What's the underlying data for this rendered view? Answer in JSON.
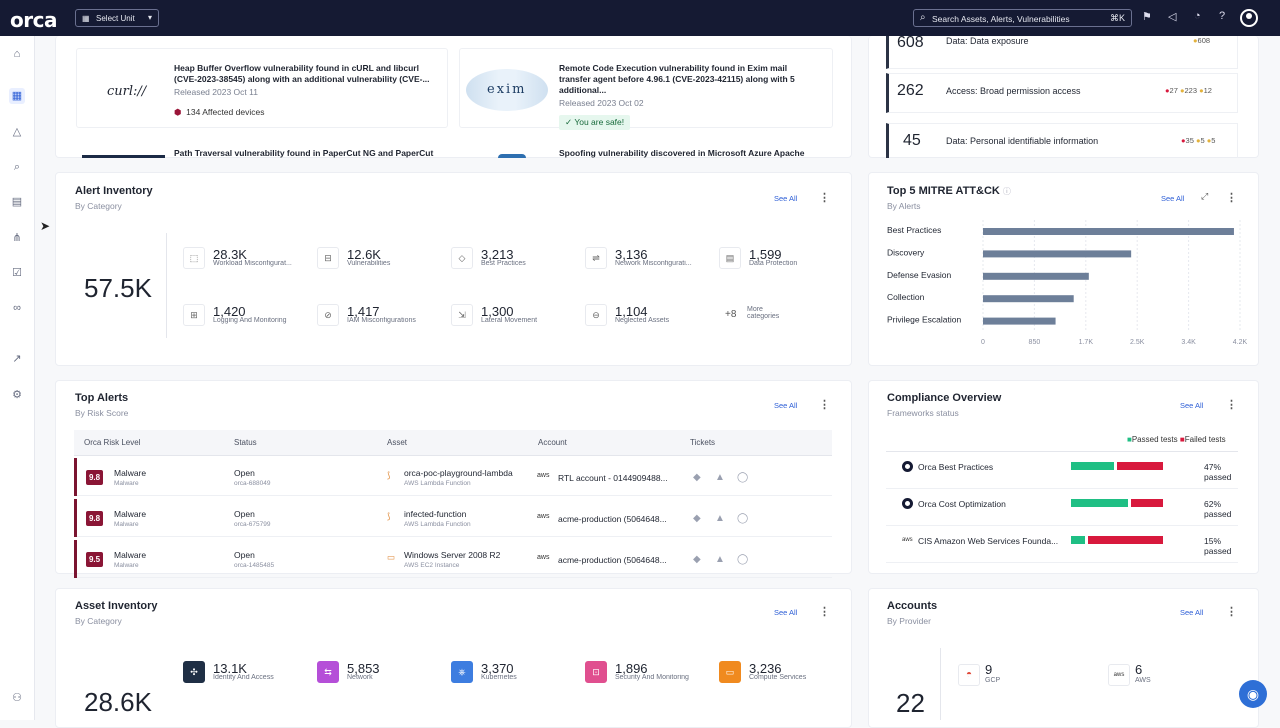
{
  "topbar": {
    "logo": "orca",
    "unit_select": "Select Unit",
    "search_placeholder": "Search Assets, Alerts, Vulnerabilities",
    "search_shortcut": "⌘K"
  },
  "news": [
    {
      "logo": "curl://",
      "title": "Heap Buffer Overflow vulnerability found in cURL and libcurl (CVE-2023-38545) along with an additional vulnerability (CVE-...",
      "date": "Released 2023 Oct 11",
      "tag": "134 Affected devices"
    },
    {
      "logo": "exim",
      "title": "Remote Code Execution vulnerability found in Exim mail transfer agent before 4.96.1 (CVE-2023-42115) along with 5 additional...",
      "date": "Released 2023 Oct 02",
      "tag": "You are safe!"
    },
    {
      "title": "Path Traversal vulnerability found in PaperCut NG and PaperCut"
    },
    {
      "title": "Spoofing vulnerability discovered in Microsoft Azure Apache"
    }
  ],
  "risk_list": [
    {
      "value": "608",
      "label": "Data: Data exposure",
      "badges": [
        "608"
      ]
    },
    {
      "value": "262",
      "label": "Access: Broad permission access",
      "badges": [
        "27",
        "223",
        "12"
      ]
    },
    {
      "value": "45",
      "label": "Data: Personal identifiable information",
      "badges": [
        "35",
        "5",
        "5"
      ]
    }
  ],
  "alert_inventory": {
    "title": "Alert Inventory",
    "subtitle": "By Category",
    "see_all": "See All",
    "total": "57.5K",
    "stats": [
      {
        "value": "28.3K",
        "label": "Workload Misconfigurat..."
      },
      {
        "value": "12.6K",
        "label": "Vulnerabilities"
      },
      {
        "value": "3,213",
        "label": "Best Practices"
      },
      {
        "value": "3,136",
        "label": "Network Misconfigurati..."
      },
      {
        "value": "1,599",
        "label": "Data Protection"
      },
      {
        "value": "1,420",
        "label": "Logging And Monitoring"
      },
      {
        "value": "1,417",
        "label": "IAM Misconfigurations"
      },
      {
        "value": "1,300",
        "label": "Lateral Movement"
      },
      {
        "value": "1,104",
        "label": "Neglected Assets"
      },
      {
        "value": "+8",
        "label": "More categories"
      }
    ]
  },
  "mitre": {
    "title": "Top 5 MITRE ATT&CK",
    "subtitle": "By Alerts",
    "see_all": "See All"
  },
  "chart_data": {
    "type": "bar",
    "orientation": "horizontal",
    "title": "Top 5 MITRE ATT&CK",
    "categories": [
      "Best Practices",
      "Discovery",
      "Defense Evasion",
      "Collection",
      "Privilege Escalation"
    ],
    "values": [
      4150,
      2450,
      1750,
      1500,
      1200
    ],
    "xlim": [
      0,
      4250
    ],
    "xticks": [
      "0",
      "850",
      "1.7K",
      "2.5K",
      "3.4K",
      "4.2K"
    ],
    "color": "#6d7f99"
  },
  "top_alerts": {
    "title": "Top Alerts",
    "subtitle": "By Risk Score",
    "see_all": "See All",
    "columns": [
      "Orca Risk Level",
      "Status",
      "Asset",
      "Account",
      "Tickets"
    ],
    "rows": [
      {
        "score": "9.8",
        "type": "Malware",
        "type2": "Malware",
        "status": "Open",
        "id": "orca-688049",
        "asset": "orca-poc-playground-lambda",
        "asset_type": "AWS Lambda Function",
        "account": "RTL account - 0144909488..."
      },
      {
        "score": "9.8",
        "type": "Malware",
        "type2": "Malware",
        "status": "Open",
        "id": "orca-675799",
        "asset": "infected-function",
        "asset_type": "AWS Lambda Function",
        "account": "acme-production (5064648..."
      },
      {
        "score": "9.5",
        "type": "Malware",
        "type2": "Malware",
        "status": "Open",
        "id": "orca-1485485",
        "asset": "Windows Server 2008 R2",
        "asset_type": "AWS EC2 Instance",
        "account": "acme-production (5064648..."
      }
    ]
  },
  "compliance": {
    "title": "Compliance Overview",
    "subtitle": "Frameworks status",
    "see_all": "See All",
    "legend_pass": "Passed tests",
    "legend_fail": "Failed tests",
    "rows": [
      {
        "name": "Orca Best Practices",
        "pct": "47% passed",
        "pass": 0.47
      },
      {
        "name": "Orca Cost Optimization",
        "pct": "62% passed",
        "pass": 0.62
      },
      {
        "name": "CIS Amazon Web Services Founda...",
        "pct": "15% passed",
        "pass": 0.15
      }
    ]
  },
  "asset_inventory": {
    "title": "Asset Inventory",
    "subtitle": "By Category",
    "see_all": "See All",
    "total": "28.6K",
    "stats": [
      {
        "value": "13.1K",
        "label": "Identity And Access",
        "color": "#1f2f45"
      },
      {
        "value": "5,853",
        "label": "Network",
        "color": "#b54fd8"
      },
      {
        "value": "3,370",
        "label": "Kubernetes",
        "color": "#3d7de0"
      },
      {
        "value": "1,896",
        "label": "Security And Monitoring",
        "color": "#e04f8f"
      },
      {
        "value": "3,236",
        "label": "Compute Services",
        "color": "#f08a1f"
      }
    ]
  },
  "accounts": {
    "title": "Accounts",
    "subtitle": "By Provider",
    "see_all": "See All",
    "total": "22",
    "items": [
      {
        "value": "9",
        "label": "GCP"
      },
      {
        "value": "6",
        "label": "AWS"
      }
    ]
  },
  "icons": {
    "see_all_color": "#2e5fd6"
  }
}
